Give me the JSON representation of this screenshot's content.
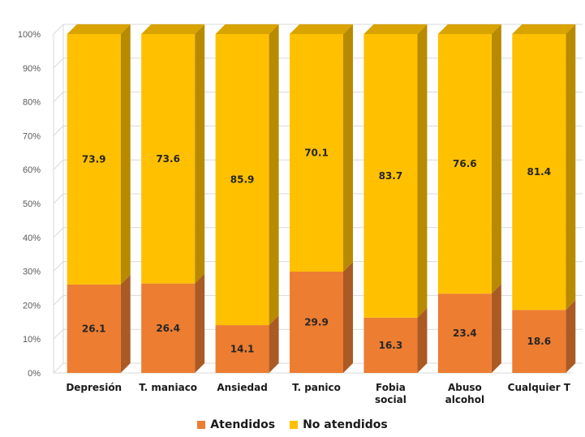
{
  "chart_data": {
    "type": "bar",
    "stacked": true,
    "percent": true,
    "categories": [
      "Depresión",
      "T. maniaco",
      "Ansiedad",
      "T. panico",
      "Fobia social",
      "Abuso alcohol",
      "Cualquier T"
    ],
    "series": [
      {
        "name": "Atendidos",
        "values": [
          26.1,
          26.4,
          14.1,
          29.9,
          16.3,
          23.4,
          18.6
        ],
        "color": "#ED7D31"
      },
      {
        "name": "No atendidos",
        "values": [
          73.9,
          73.6,
          85.9,
          70.1,
          83.7,
          76.6,
          81.4
        ],
        "color": "#FFC000"
      }
    ],
    "yticks": [
      "0%",
      "10%",
      "20%",
      "30%",
      "40%",
      "50%",
      "60%",
      "70%",
      "80%",
      "90%",
      "100%"
    ],
    "ylim": [
      0,
      100
    ],
    "grid": true,
    "legend": "bottom"
  }
}
